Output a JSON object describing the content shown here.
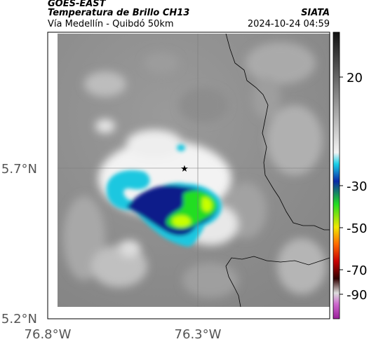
{
  "header": {
    "satellite": "GOES-EAST",
    "product": "Temperatura de Brillo CH13",
    "region": "Vía Medellín - Quibdó 50km",
    "source": "SIATA",
    "datetime": "2024-10-24 04:59"
  },
  "axes": {
    "lat_ticks": [
      "5.7°N",
      "5.2°N"
    ],
    "lon_ticks": [
      "76.8°W",
      "76.3°W"
    ]
  },
  "colorbar": {
    "labels": [
      "20",
      "-30",
      "-50",
      "-70",
      "-90"
    ]
  },
  "marker": {
    "symbol": "★"
  },
  "colors": {
    "cloud_cold": "#0a1a8a",
    "cloud_edge": "#1fc7e0",
    "cloud_core": "#22dd22",
    "cloud_peak": "#c8ff00",
    "background_gray": "#8a8a8a"
  }
}
